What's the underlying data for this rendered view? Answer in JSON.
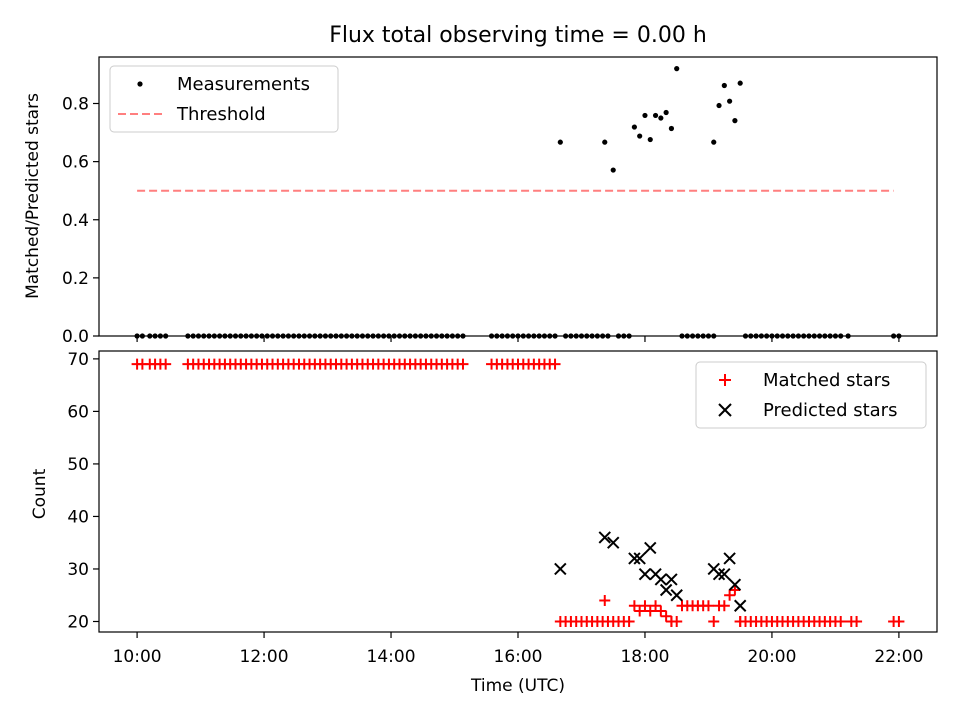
{
  "figure": {
    "title": "Flux total observing time = 0.00 h",
    "xlabel": "Time (UTC)"
  },
  "colors": {
    "measurement": "#000000",
    "threshold": "#ff7f7f",
    "matched": "#ff0000",
    "predicted": "#000000"
  },
  "chart_data": [
    {
      "type": "scatter",
      "ylabel": "Matched/Predicted stars",
      "xlim_hours": [
        9.4,
        22.6
      ],
      "ylim": [
        0,
        0.96
      ],
      "yticks": [
        0.0,
        0.2,
        0.4,
        0.6,
        0.8
      ],
      "ytick_labels": [
        "0.0",
        "0.2",
        "0.4",
        "0.6",
        "0.8"
      ],
      "legend": {
        "position": "upper-left",
        "entries": [
          "Measurements",
          "Threshold"
        ]
      },
      "threshold": {
        "name": "Threshold",
        "value": 0.5,
        "x_start": "10:00",
        "x_end": "21:55"
      },
      "zero_runs": [
        [
          "10:00",
          "10:08"
        ],
        [
          "10:12",
          "10:30"
        ],
        [
          "10:48",
          "15:10"
        ],
        [
          "15:35",
          "16:35"
        ],
        [
          "16:45",
          "17:25"
        ],
        [
          "17:35",
          "17:48"
        ],
        [
          "18:35",
          "19:05"
        ],
        [
          "19:35",
          "21:05"
        ],
        [
          "21:12",
          "21:15"
        ],
        [
          "21:55",
          "22:00"
        ]
      ],
      "series": [
        {
          "name": "Measurements",
          "points": [
            [
              "16:40",
              0.667
            ],
            [
              "17:22",
              0.667
            ],
            [
              "17:30",
              0.571
            ],
            [
              "17:50",
              0.719
            ],
            [
              "17:55",
              0.688
            ],
            [
              "18:00",
              0.759
            ],
            [
              "18:05",
              0.676
            ],
            [
              "18:10",
              0.759
            ],
            [
              "18:15",
              0.75
            ],
            [
              "18:20",
              0.769
            ],
            [
              "18:25",
              0.714
            ],
            [
              "18:30",
              0.92
            ],
            [
              "19:05",
              0.667
            ],
            [
              "19:10",
              0.793
            ],
            [
              "19:15",
              0.862
            ],
            [
              "19:20",
              0.808
            ],
            [
              "19:25",
              0.741
            ],
            [
              "19:30",
              0.87
            ]
          ]
        }
      ]
    },
    {
      "type": "scatter",
      "ylabel": "Count",
      "xlim_hours": [
        9.4,
        22.6
      ],
      "ylim": [
        18,
        71.5
      ],
      "yticks": [
        20,
        30,
        40,
        50,
        60,
        70
      ],
      "ytick_labels": [
        "20",
        "30",
        "40",
        "50",
        "60",
        "70"
      ],
      "xticks": [
        "10:00",
        "12:00",
        "14:00",
        "16:00",
        "18:00",
        "20:00",
        "22:00"
      ],
      "legend": {
        "position": "upper-right",
        "entries": [
          "Matched stars",
          "Predicted stars"
        ]
      },
      "matched_runs_69": [
        [
          "10:00",
          "10:08"
        ],
        [
          "10:12",
          "10:30"
        ],
        [
          "10:48",
          "15:10"
        ],
        [
          "15:35",
          "16:35"
        ]
      ],
      "matched_runs_20": [
        [
          "16:40",
          "17:25"
        ],
        [
          "17:30",
          "17:45"
        ],
        [
          "18:25",
          "18:30"
        ],
        [
          "19:05",
          "19:05"
        ],
        [
          "19:30",
          "21:05"
        ],
        [
          "21:15",
          "21:20"
        ],
        [
          "21:55",
          "22:00"
        ]
      ],
      "series": [
        {
          "name": "Matched stars",
          "points": [
            [
              "17:22",
              24
            ],
            [
              "17:50",
              23
            ],
            [
              "17:55",
              22
            ],
            [
              "18:00",
              23
            ],
            [
              "18:05",
              22
            ],
            [
              "18:10",
              23
            ],
            [
              "18:15",
              22
            ],
            [
              "18:20",
              21
            ],
            [
              "18:25",
              20
            ],
            [
              "18:35",
              23
            ],
            [
              "18:40",
              23
            ],
            [
              "18:45",
              23
            ],
            [
              "18:50",
              23
            ],
            [
              "18:55",
              23
            ],
            [
              "19:00",
              23
            ],
            [
              "19:10",
              23
            ],
            [
              "19:15",
              23
            ],
            [
              "19:20",
              25
            ],
            [
              "19:25",
              26
            ],
            [
              "19:30",
              20
            ]
          ]
        },
        {
          "name": "Predicted stars",
          "points": [
            [
              "16:40",
              30
            ],
            [
              "17:22",
              36
            ],
            [
              "17:30",
              35
            ],
            [
              "17:50",
              32
            ],
            [
              "17:55",
              32
            ],
            [
              "18:00",
              29
            ],
            [
              "18:05",
              34
            ],
            [
              "18:10",
              29
            ],
            [
              "18:15",
              28
            ],
            [
              "18:20",
              26
            ],
            [
              "18:25",
              28
            ],
            [
              "18:30",
              25
            ],
            [
              "19:05",
              30
            ],
            [
              "19:10",
              29
            ],
            [
              "19:15",
              29
            ],
            [
              "19:20",
              32
            ],
            [
              "19:25",
              27
            ],
            [
              "19:30",
              23
            ]
          ]
        }
      ]
    }
  ]
}
